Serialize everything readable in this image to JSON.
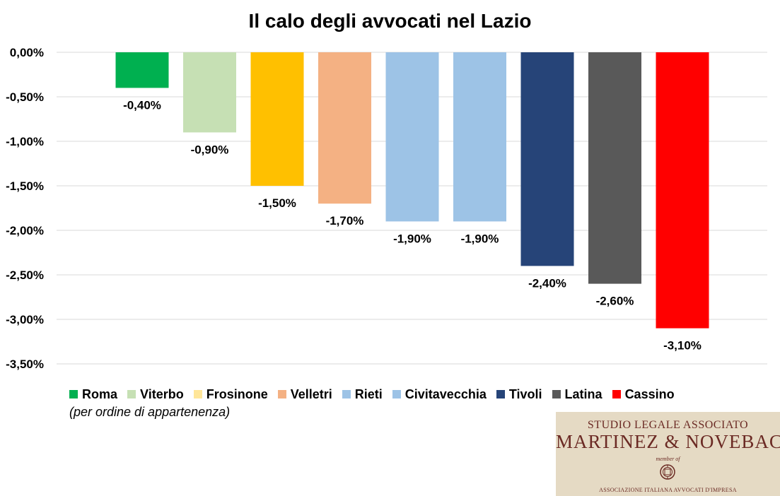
{
  "chart_data": {
    "type": "bar",
    "title": "Il calo degli avvocati nel Lazio",
    "xlabel": "",
    "ylabel": "",
    "ylim": [
      -3.5,
      0
    ],
    "yticks": [
      "0,00%",
      "-0,50%",
      "-1,00%",
      "-1,50%",
      "-2,00%",
      "-2,50%",
      "-3,00%",
      "-3,50%"
    ],
    "ytick_values": [
      0,
      -0.5,
      -1.0,
      -1.5,
      -2.0,
      -2.5,
      -3.0,
      -3.5
    ],
    "grid": true,
    "legend_position": "bottom",
    "categories": [
      "Roma",
      "Viterbo",
      "Frosinone",
      "Velletri",
      "Rieti",
      "Civitavecchia",
      "Tivoli",
      "Latina",
      "Cassino"
    ],
    "values": [
      -0.4,
      -0.9,
      -1.5,
      -1.7,
      -1.9,
      -1.9,
      -2.4,
      -2.6,
      -3.1
    ],
    "data_labels": [
      "-0,40%",
      "-0,90%",
      "-1,50%",
      "-1,70%",
      "-1,90%",
      "-1,90%",
      "-2,40%",
      "-2,60%",
      "-3,10%"
    ],
    "colors": [
      "#00b050",
      "#c6e0b4",
      "#ffc000",
      "#f4b183",
      "#9dc3e6",
      "#9dc3e6",
      "#264478",
      "#595959",
      "#ff0000"
    ],
    "legend_colors": [
      "#00b050",
      "#c6e0b4",
      "#ffe699",
      "#f4b183",
      "#9dc3e6",
      "#9dc3e6",
      "#264478",
      "#595959",
      "#ff0000"
    ],
    "note": "(per ordine di appartenenza)"
  },
  "logo": {
    "line1": "STUDIO LEGALE ASSOCIATO",
    "line2": "MARTINEZ & NOVEBACI",
    "line3": "member of",
    "line4": "ASSOCIAZIONE ITALIANA AVVOCATI D'IMPRESA"
  }
}
